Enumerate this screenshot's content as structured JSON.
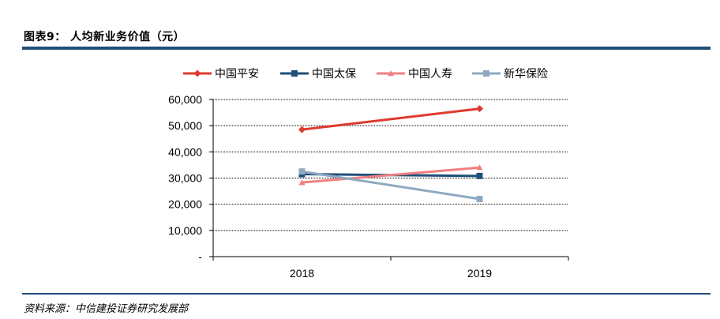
{
  "header": {
    "title": "图表9：  人均新业务价值（元）"
  },
  "footer": {
    "source": "资料来源：中信建投证券研究发展部"
  },
  "chart_data": {
    "type": "line",
    "title": "人均新业务价值（元）",
    "xlabel": "",
    "ylabel": "",
    "categories": [
      "2018",
      "2019"
    ],
    "ylim": [
      0,
      60000
    ],
    "yticks": [
      0,
      10000,
      20000,
      30000,
      40000,
      50000,
      60000
    ],
    "ytick_labels": [
      "-",
      "10,000",
      "20,000",
      "30,000",
      "40,000",
      "50,000",
      "60,000"
    ],
    "legend_position": "top",
    "grid": true,
    "series": [
      {
        "name": "中国平安",
        "values": [
          48500,
          56500
        ],
        "color": "#e03a2d",
        "marker": "diamond"
      },
      {
        "name": "中国太保",
        "values": [
          31500,
          30800
        ],
        "color": "#1f4e79",
        "marker": "square"
      },
      {
        "name": "中国人寿",
        "values": [
          28300,
          34000
        ],
        "color": "#f08080",
        "marker": "triangle"
      },
      {
        "name": "新华保险",
        "values": [
          32500,
          22000
        ],
        "color": "#8ea9c1",
        "marker": "square"
      }
    ]
  }
}
